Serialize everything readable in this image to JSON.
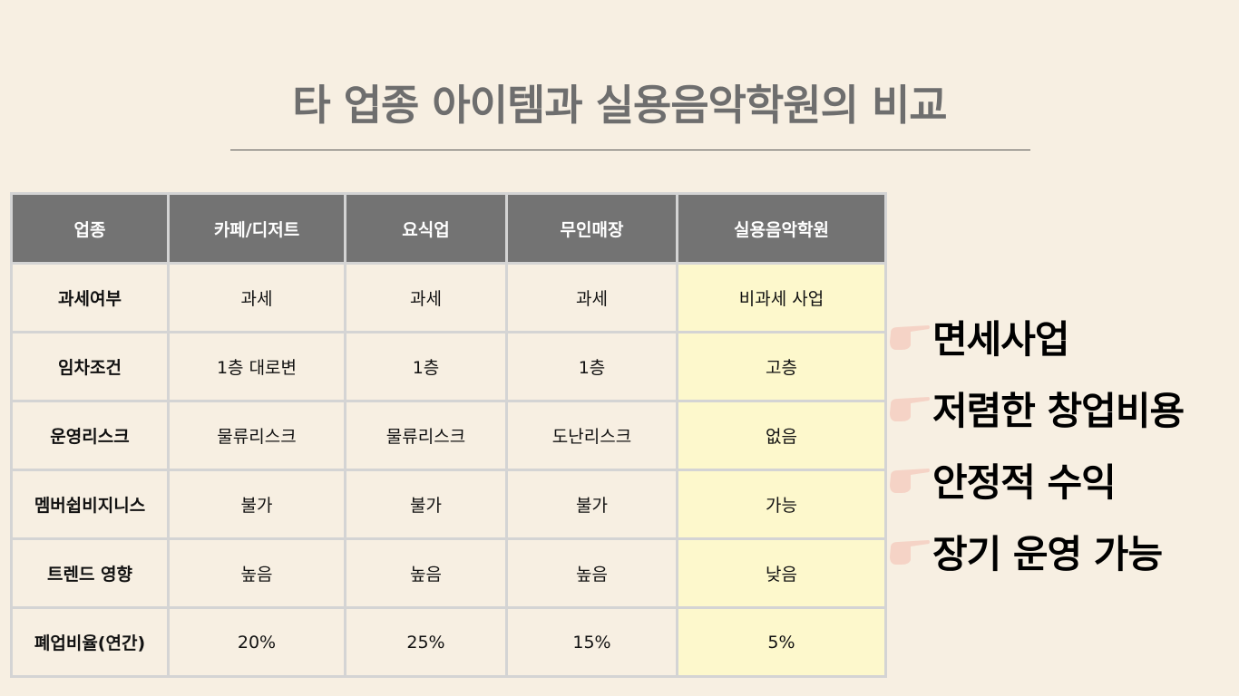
{
  "title": "타 업종 아이템과 실용음악학원의 비교",
  "table": {
    "headers": [
      "업종",
      "카페/디저트",
      "요식업",
      "무인매장",
      "실용음악학원"
    ],
    "rows": [
      [
        "과세여부",
        "과세",
        "과세",
        "과세",
        "비과세 사업"
      ],
      [
        "임차조건",
        "1층 대로변",
        "1층",
        "1층",
        "고층"
      ],
      [
        "운영리스크",
        "물류리스크",
        "물류리스크",
        "도난리스크",
        "없음"
      ],
      [
        "멤버쉽비지니스",
        "불가",
        "불가",
        "불가",
        "가능"
      ],
      [
        "트렌드 영향",
        "높음",
        "높음",
        "높음",
        "낮음"
      ],
      [
        "폐업비율(연간)",
        "20%",
        "25%",
        "15%",
        "5%"
      ]
    ]
  },
  "bullets": [
    "면세사업",
    "저렴한 창업비용",
    "안정적 수익",
    "장기 운영 가능"
  ],
  "colors": {
    "header_bg": "#737373",
    "highlight": "#fdf8cc",
    "background": "#f7efe2",
    "hand": "#f5d3c6"
  },
  "icons": {
    "bullet": "pointing-hand-icon"
  }
}
